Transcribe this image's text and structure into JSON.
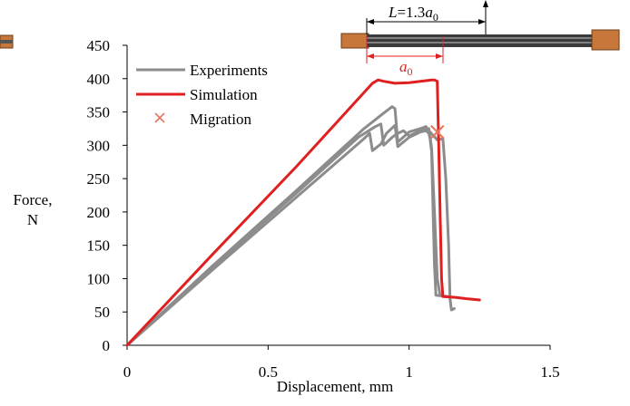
{
  "chart_data": {
    "type": "line",
    "xlabel": "Displacement, mm",
    "ylabel_line1": "Force,",
    "ylabel_line2": "N",
    "xlim": [
      0,
      1.5
    ],
    "ylim": [
      0,
      450
    ],
    "xticks": [
      0,
      0.5,
      1,
      1.5
    ],
    "xtick_labels": [
      "0",
      "0.5",
      "1",
      "1.5"
    ],
    "yticks": [
      0,
      50,
      100,
      150,
      200,
      250,
      300,
      350,
      400,
      450
    ],
    "ytick_labels": [
      "0",
      "50",
      "100",
      "150",
      "200",
      "250",
      "300",
      "350",
      "400",
      "450"
    ],
    "grid": false,
    "legend_position": "top-left",
    "series": [
      {
        "name": "Experiments",
        "color": "#8c8c8c",
        "style": "line",
        "points": [
          [
            0,
            0
          ],
          [
            0.3,
            112
          ],
          [
            0.6,
            222
          ],
          [
            0.84,
            310
          ],
          [
            0.86,
            318
          ],
          [
            0.87,
            292
          ],
          [
            0.9,
            302
          ],
          [
            0.92,
            318
          ],
          [
            0.94,
            326
          ],
          [
            0.95,
            330
          ],
          [
            0.96,
            298
          ],
          [
            1.0,
            312
          ],
          [
            1.04,
            320
          ],
          [
            1.06,
            322
          ],
          [
            1.07,
            318
          ],
          [
            1.075,
            310
          ],
          [
            1.08,
            295
          ],
          [
            1.09,
            200
          ],
          [
            1.1,
            100
          ],
          [
            1.11,
            75
          ],
          [
            1.15,
            72
          ]
        ]
      },
      {
        "name": "Experiments",
        "color": "#8c8c8c",
        "style": "line",
        "points": [
          [
            0,
            0
          ],
          [
            0.3,
            116
          ],
          [
            0.6,
            228
          ],
          [
            0.82,
            312
          ],
          [
            0.88,
            328
          ],
          [
            0.9,
            332
          ],
          [
            0.91,
            300
          ],
          [
            0.94,
            312
          ],
          [
            0.96,
            318
          ],
          [
            0.98,
            322
          ],
          [
            1.0,
            314
          ],
          [
            1.04,
            322
          ],
          [
            1.07,
            325
          ],
          [
            1.08,
            290
          ],
          [
            1.085,
            200
          ],
          [
            1.09,
            120
          ],
          [
            1.095,
            75
          ],
          [
            1.12,
            74
          ]
        ]
      },
      {
        "name": "Experiments",
        "color": "#8c8c8c",
        "style": "line",
        "points": [
          [
            0,
            0
          ],
          [
            0.3,
            118
          ],
          [
            0.6,
            232
          ],
          [
            0.84,
            325
          ],
          [
            0.9,
            345
          ],
          [
            0.94,
            358
          ],
          [
            0.95,
            355
          ],
          [
            0.96,
            305
          ],
          [
            1.0,
            320
          ],
          [
            1.04,
            325
          ],
          [
            1.06,
            328
          ],
          [
            1.07,
            322
          ],
          [
            1.1,
            308
          ],
          [
            1.12,
            310
          ],
          [
            1.13,
            250
          ],
          [
            1.14,
            150
          ],
          [
            1.145,
            70
          ],
          [
            1.15,
            53
          ],
          [
            1.16,
            55
          ]
        ]
      },
      {
        "name": "Simulation",
        "color": "#e02020",
        "style": "line",
        "points": [
          [
            0,
            0
          ],
          [
            0.3,
            135
          ],
          [
            0.6,
            268
          ],
          [
            0.87,
            393
          ],
          [
            0.89,
            398
          ],
          [
            0.91,
            396
          ],
          [
            0.95,
            393
          ],
          [
            1.0,
            394
          ],
          [
            1.04,
            396
          ],
          [
            1.08,
            398
          ],
          [
            1.09,
            398
          ],
          [
            1.1,
            396
          ],
          [
            1.105,
            300
          ],
          [
            1.11,
            200
          ],
          [
            1.115,
            100
          ],
          [
            1.12,
            73
          ],
          [
            1.16,
            72
          ],
          [
            1.2,
            70
          ],
          [
            1.25,
            68
          ]
        ]
      },
      {
        "name": "Migration",
        "color": "#e8745a",
        "style": "marker-x",
        "points": [
          [
            1.1,
            320
          ]
        ]
      }
    ]
  },
  "annotations": {
    "length_label_var": "L",
    "length_label_eq": "=1.3",
    "length_label_a": "a",
    "length_label_sub": "0",
    "crack_label_a": "a",
    "crack_label_sub": "0"
  }
}
